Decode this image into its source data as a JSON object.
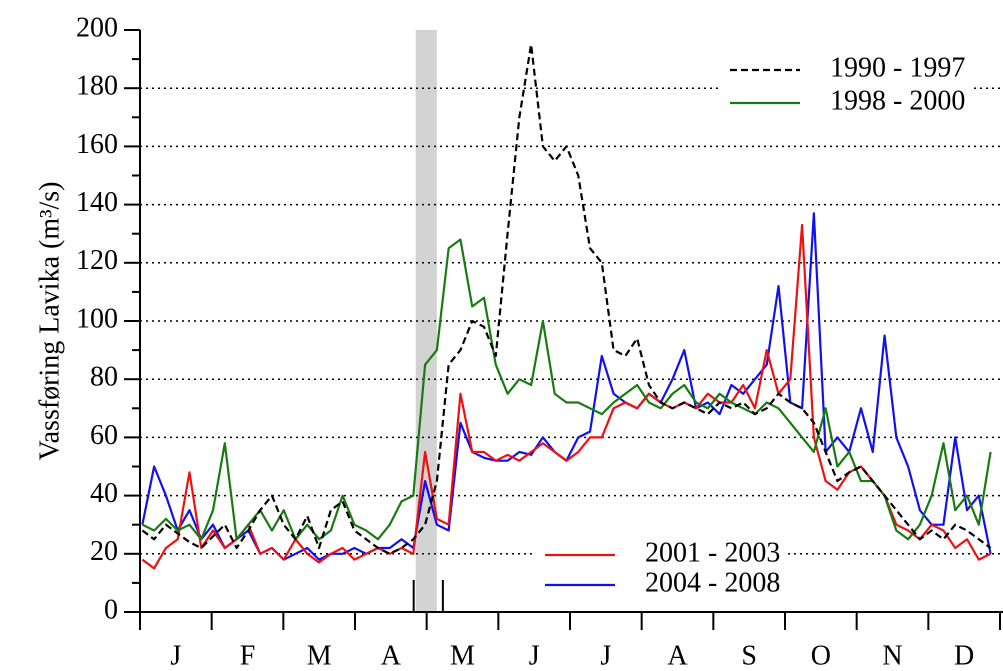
{
  "chart_data": {
    "type": "line",
    "ylabel": "Vassføring Lavika (m³/s)",
    "months": [
      "J",
      "F",
      "M",
      "A",
      "M",
      "J",
      "J",
      "A",
      "S",
      "O",
      "N",
      "D"
    ],
    "xlim": [
      0,
      365
    ],
    "ylim": [
      0,
      200
    ],
    "yticks": [
      0,
      20,
      40,
      60,
      80,
      100,
      120,
      140,
      160,
      180,
      200
    ],
    "grid": true,
    "shaded_span": [
      117,
      126
    ],
    "x": [
      1,
      6,
      11,
      16,
      21,
      26,
      31,
      36,
      41,
      46,
      51,
      56,
      61,
      66,
      71,
      76,
      81,
      86,
      91,
      96,
      101,
      106,
      111,
      116,
      121,
      126,
      131,
      136,
      141,
      146,
      151,
      156,
      161,
      166,
      171,
      176,
      181,
      186,
      191,
      196,
      201,
      206,
      211,
      216,
      221,
      226,
      231,
      236,
      241,
      246,
      251,
      256,
      261,
      266,
      271,
      276,
      281,
      286,
      291,
      296,
      301,
      306,
      311,
      316,
      321,
      326,
      331,
      336,
      341,
      346,
      351,
      356,
      361
    ],
    "series": [
      {
        "name": "1990 - 1997",
        "color": "#000000",
        "dashed": true,
        "values": [
          28,
          25,
          30,
          27,
          24,
          22,
          26,
          30,
          22,
          28,
          35,
          40,
          30,
          25,
          33,
          22,
          35,
          38,
          28,
          25,
          22,
          20,
          22,
          25,
          30,
          45,
          85,
          90,
          100,
          98,
          88,
          130,
          170,
          195,
          160,
          155,
          160,
          150,
          125,
          120,
          90,
          88,
          94,
          78,
          72,
          70,
          72,
          70,
          68,
          72,
          70,
          72,
          68,
          70,
          75,
          72,
          70,
          65,
          55,
          45,
          48,
          50,
          45,
          40,
          35,
          30,
          25,
          28,
          25,
          30,
          28,
          25,
          22
        ]
      },
      {
        "name": "1998 - 2000",
        "color": "#1a7a12",
        "dashed": false,
        "values": [
          30,
          28,
          32,
          28,
          30,
          25,
          35,
          58,
          25,
          30,
          35,
          28,
          35,
          25,
          30,
          25,
          28,
          40,
          30,
          28,
          25,
          30,
          38,
          40,
          85,
          90,
          125,
          128,
          105,
          108,
          85,
          75,
          80,
          78,
          100,
          75,
          72,
          72,
          70,
          68,
          72,
          75,
          78,
          72,
          70,
          75,
          78,
          72,
          70,
          75,
          72,
          70,
          68,
          72,
          70,
          65,
          60,
          55,
          70,
          50,
          55,
          45,
          45,
          40,
          28,
          25,
          30,
          40,
          58,
          35,
          40,
          30,
          55
        ]
      },
      {
        "name": "2001 - 2003",
        "color": "#ee1111",
        "dashed": false,
        "values": [
          18,
          15,
          22,
          25,
          48,
          22,
          28,
          22,
          25,
          30,
          20,
          22,
          18,
          25,
          20,
          17,
          20,
          22,
          18,
          20,
          22,
          20,
          22,
          20,
          55,
          32,
          30,
          75,
          55,
          55,
          52,
          54,
          52,
          55,
          58,
          55,
          52,
          55,
          60,
          60,
          70,
          72,
          70,
          75,
          72,
          70,
          72,
          70,
          75,
          72,
          72,
          78,
          70,
          90,
          75,
          80,
          133,
          60,
          45,
          42,
          48,
          50,
          45,
          40,
          30,
          28,
          25,
          30,
          28,
          22,
          25,
          18,
          20
        ]
      },
      {
        "name": "2004 - 2008",
        "color": "#1111ee",
        "dashed": false,
        "values": [
          30,
          50,
          40,
          28,
          35,
          25,
          30,
          22,
          25,
          28,
          20,
          22,
          18,
          20,
          22,
          18,
          20,
          20,
          22,
          20,
          22,
          22,
          25,
          22,
          45,
          30,
          28,
          65,
          55,
          53,
          52,
          52,
          55,
          54,
          60,
          55,
          52,
          60,
          62,
          88,
          75,
          72,
          70,
          75,
          72,
          80,
          90,
          70,
          72,
          68,
          78,
          75,
          80,
          85,
          112,
          72,
          70,
          137,
          55,
          60,
          55,
          70,
          55,
          95,
          60,
          50,
          35,
          30,
          30,
          60,
          35,
          40,
          20
        ]
      }
    ]
  }
}
